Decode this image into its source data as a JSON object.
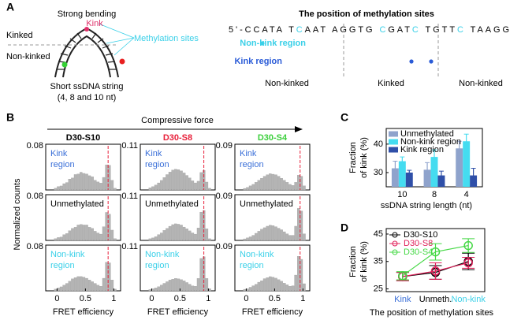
{
  "panel_a": {
    "panel_label": "A",
    "title": "Strong bending",
    "kink": "Kink",
    "methylation_sites": "Methylation sites",
    "kinked": "Kinked",
    "non_kinked": "Non-kinked",
    "caption": [
      "Short ssDNA string",
      "(4, 8 and 10 nt)"
    ],
    "sequence_title": "The position of methylation sites",
    "sequence": [
      {
        "text": "5'-CCATA T",
        "color": "#000000"
      },
      {
        "text": "C",
        "color": "#3ad0e8"
      },
      {
        "text": "AAT AGGTG ",
        "color": "#000000"
      },
      {
        "text": "C",
        "color": "#3ad0e8"
      },
      {
        "text": "GAT",
        "color": "#000000"
      },
      {
        "text": "C",
        "color": "#3ad0e8"
      },
      {
        "text": " TGTT",
        "color": "#000000"
      },
      {
        "text": "C",
        "color": "#3ad0e8"
      },
      {
        "text": " TAAGG",
        "color": "#000000"
      }
    ],
    "rows": [
      {
        "label": "Non-kink region",
        "color": "#3ad0e8"
      },
      {
        "label": "Kink region",
        "color": "#2a5bd7"
      }
    ],
    "regions": [
      "Non-kinked",
      "Kinked",
      "Non-kinked"
    ]
  },
  "chart_data": [
    {
      "type": "histogram-grid",
      "panel_label": "B",
      "title": "Compressive force",
      "xlabel": "FRET efficiency",
      "ylabel": "Normalized counts",
      "xlim": [
        -0.2,
        1.12
      ],
      "xticks": [
        0,
        0.5,
        1
      ],
      "bins": [
        -0.05,
        0,
        0.05,
        0.1,
        0.15,
        0.2,
        0.25,
        0.3,
        0.35,
        0.4,
        0.45,
        0.5,
        0.55,
        0.6,
        0.65,
        0.7,
        0.75,
        0.8,
        0.85,
        0.9,
        0.95,
        1,
        1.05
      ],
      "color": "#b4b4b4",
      "rows": [
        {
          "label": [
            "Kink",
            "region"
          ],
          "color": "#3a6fd8"
        },
        {
          "label": [
            "Unmethylated"
          ],
          "color": "#000000"
        },
        {
          "label": [
            "Non-kink",
            "region"
          ],
          "color": "#3ad0e8"
        }
      ],
      "columns": [
        {
          "title": "D30-S10",
          "color": "#000000",
          "ylim": [
            0,
            0.08
          ],
          "yticks": [
            0.08
          ],
          "reference_x": 0.9,
          "counts": [
            [
              0.003,
              0.006,
              0.007,
              0.011,
              0.013,
              0.019,
              0.021,
              0.027,
              0.028,
              0.031,
              0.029,
              0.028,
              0.025,
              0.023,
              0.017,
              0.014,
              0.012,
              0.022,
              0.044,
              0.043,
              0.017,
              0.003
            ],
            [
              0.003,
              0.005,
              0.006,
              0.01,
              0.012,
              0.017,
              0.021,
              0.023,
              0.027,
              0.028,
              0.027,
              0.027,
              0.023,
              0.021,
              0.016,
              0.013,
              0.011,
              0.024,
              0.049,
              0.046,
              0.018,
              0.003
            ],
            [
              0.003,
              0.005,
              0.007,
              0.01,
              0.013,
              0.017,
              0.021,
              0.023,
              0.025,
              0.025,
              0.024,
              0.022,
              0.019,
              0.016,
              0.013,
              0.01,
              0.008,
              0.022,
              0.05,
              0.049,
              0.019,
              0.003
            ]
          ]
        },
        {
          "title": "D30-S8",
          "color": "#e8203a",
          "ylim": [
            0,
            0.11
          ],
          "yticks": [
            0.11
          ],
          "reference_x": 0.92,
          "counts": [
            [
              0.005,
              0.008,
              0.012,
              0.017,
              0.023,
              0.03,
              0.037,
              0.043,
              0.048,
              0.05,
              0.049,
              0.046,
              0.041,
              0.035,
              0.029,
              0.022,
              0.017,
              0.021,
              0.042,
              0.047,
              0.019,
              0.004
            ],
            [
              0.004,
              0.006,
              0.009,
              0.014,
              0.018,
              0.024,
              0.029,
              0.034,
              0.038,
              0.04,
              0.039,
              0.037,
              0.032,
              0.028,
              0.023,
              0.018,
              0.015,
              0.03,
              0.068,
              0.072,
              0.028,
              0.004
            ],
            [
              0.003,
              0.005,
              0.007,
              0.01,
              0.014,
              0.018,
              0.022,
              0.026,
              0.028,
              0.03,
              0.029,
              0.027,
              0.024,
              0.02,
              0.016,
              0.012,
              0.011,
              0.03,
              0.078,
              0.082,
              0.03,
              0.005
            ]
          ]
        },
        {
          "title": "D30-S4",
          "color": "#3ccf3c",
          "ylim": [
            0,
            0.09
          ],
          "yticks": [
            0.09
          ],
          "reference_x": 0.95,
          "counts": [
            [
              0.003,
              0.005,
              0.008,
              0.011,
              0.015,
              0.019,
              0.023,
              0.027,
              0.03,
              0.032,
              0.031,
              0.03,
              0.027,
              0.023,
              0.019,
              0.015,
              0.011,
              0.009,
              0.015,
              0.029,
              0.027,
              0.008
            ],
            [
              0.003,
              0.005,
              0.007,
              0.01,
              0.014,
              0.018,
              0.022,
              0.025,
              0.028,
              0.03,
              0.029,
              0.027,
              0.024,
              0.021,
              0.017,
              0.013,
              0.01,
              0.01,
              0.028,
              0.063,
              0.058,
              0.013
            ],
            [
              0.003,
              0.004,
              0.007,
              0.01,
              0.013,
              0.017,
              0.02,
              0.024,
              0.026,
              0.028,
              0.027,
              0.025,
              0.022,
              0.019,
              0.015,
              0.012,
              0.009,
              0.01,
              0.031,
              0.068,
              0.062,
              0.014
            ]
          ]
        }
      ]
    },
    {
      "type": "bar",
      "panel_label": "C",
      "xlabel": "ssDNA string length (nt)",
      "ylabel": [
        "Fraction",
        "of kink (%)"
      ],
      "categories": [
        "10",
        "8",
        "4"
      ],
      "ylim": [
        25,
        45.5
      ],
      "yticks": [
        30,
        40
      ],
      "legend": "upper left",
      "series": [
        {
          "name": "Unmethylated",
          "color": "#8fa3cc",
          "values": [
            31.5,
            31,
            38.5
          ],
          "errors": [
            2.5,
            2.5,
            2.5
          ]
        },
        {
          "name": "Non-kink region",
          "color": "#45dcf0",
          "values": [
            34,
            35.5,
            41
          ],
          "errors": [
            1.5,
            2.5,
            2.5
          ]
        },
        {
          "name": "Kink region",
          "color": "#2f4fa8",
          "values": [
            30,
            29,
            29
          ],
          "errors": [
            0.8,
            1.5,
            2.5
          ]
        }
      ]
    },
    {
      "type": "line",
      "panel_label": "D",
      "xlabel": "The position of methylation sites",
      "ylabel": [
        "Fraction",
        "of kink (%)"
      ],
      "categories": [
        "Kink",
        "Unmeth.",
        "Non-kink"
      ],
      "category_colors": [
        "#3a6fd8",
        "#000000",
        "#3ad0e8"
      ],
      "ylim": [
        24,
        47
      ],
      "yticks": [
        25,
        35,
        45
      ],
      "legend": "upper left",
      "series": [
        {
          "name": "D30-S10",
          "color": "#000000",
          "values": [
            29.5,
            31,
            35
          ],
          "errors": [
            1.5,
            2.5,
            3
          ]
        },
        {
          "name": "D30-S8",
          "color": "#e0205a",
          "values": [
            29.5,
            31.5,
            34.5
          ],
          "errors": [
            1.5,
            3,
            2
          ]
        },
        {
          "name": "D30-S4",
          "color": "#44d844",
          "values": [
            29.8,
            38.5,
            40.8
          ],
          "errors": [
            1.5,
            3,
            2.5
          ]
        }
      ]
    }
  ]
}
